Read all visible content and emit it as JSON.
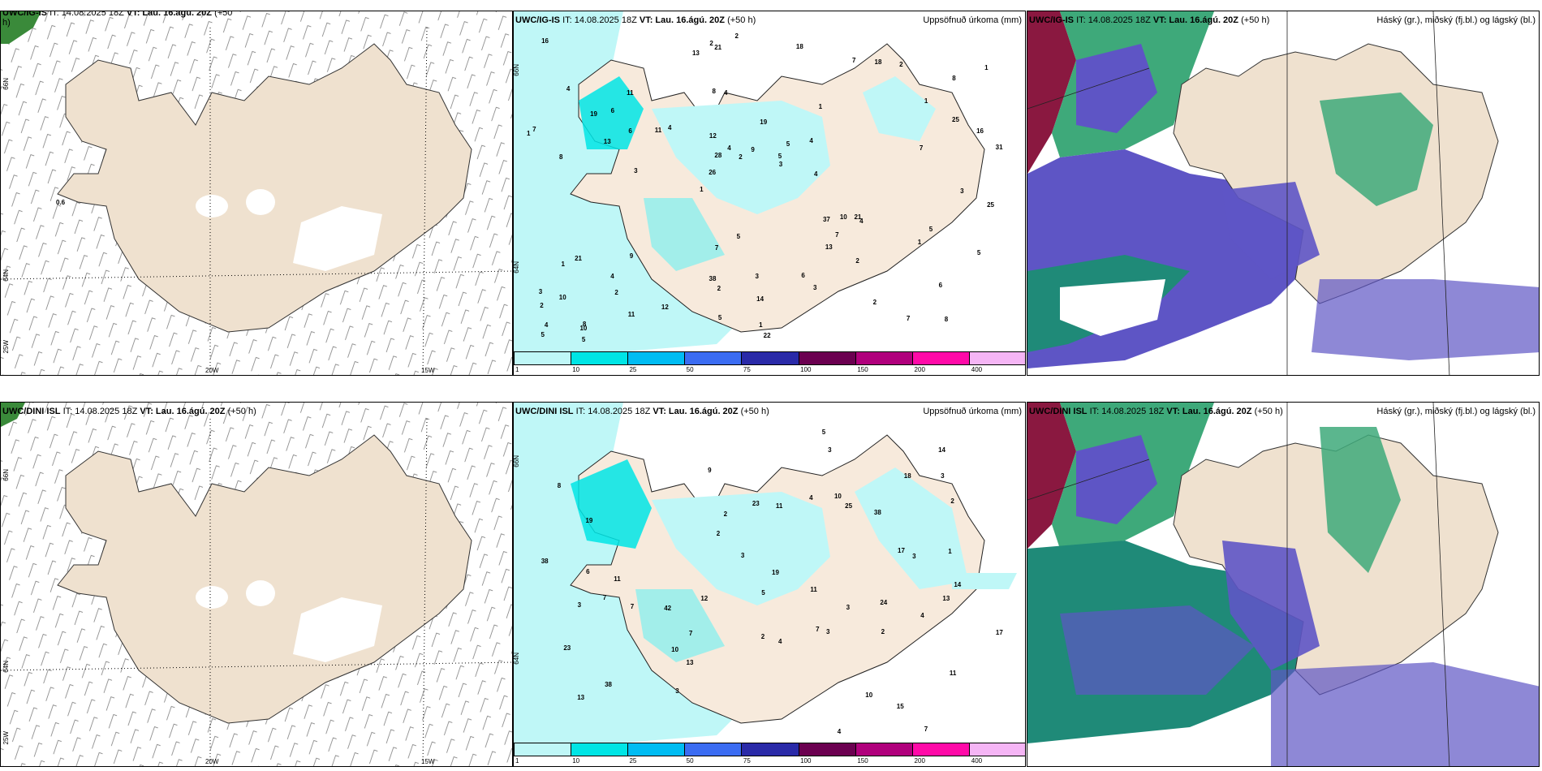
{
  "panels": {
    "tl": {
      "model": "UWC/IG-IS",
      "it": "IT: 14.08.2025 18Z",
      "vt_label": "VT:",
      "vt": "Lau. 16.ágú. 20Z",
      "lead": "(+50",
      "lead2": "h)",
      "extra": "0.6"
    },
    "tm": {
      "model": "UWC/IG-IS",
      "it": "IT: 14.08.2025 18Z",
      "vt_label": "VT:",
      "vt": "Lau. 16.ágú. 20Z",
      "lead": "(+50 h)",
      "right": "Uppsöfnuð úrkoma (mm)"
    },
    "tr": {
      "model": "UWC/IG-IS",
      "it": "IT: 14.08.2025 18Z",
      "vt_label": "VT:",
      "vt": "Lau. 16.ágú. 20Z",
      "lead": "(+50 h)",
      "right": "Háský (gr.), miðský (fj.bl.) og lágský (bl.)"
    },
    "bl": {
      "model": "UWC/DINI ISL",
      "it": "IT: 14.08.2025 18Z",
      "vt_label": "VT:",
      "vt": "Lau. 16.ágú. 20Z",
      "lead": "(+50 h)"
    },
    "bm": {
      "model": "UWC/DINI ISL",
      "it": "IT: 14.08.2025 18Z",
      "vt_label": "VT:",
      "vt": "Lau. 16.ágú. 20Z",
      "lead": "(+50 h)",
      "right": "Uppsöfnuð úrkoma (mm)"
    },
    "br": {
      "model": "UWC/DINI ISL",
      "it": "IT: 14.08.2025 18Z",
      "vt_label": "VT:",
      "vt": "Lau. 16.ágú. 20Z",
      "lead": "(+50 h)",
      "right": "Háský (gr.), miðský (fj.bl.) og lágský (bl.)"
    }
  },
  "axes": {
    "lat66": "66N",
    "lat64": "64N",
    "lon25": "25W",
    "lon20": "20W",
    "lon15": "15W",
    "lat65b": "65N"
  },
  "colorbar": {
    "labels": [
      "1",
      "10",
      "25",
      "50",
      "75",
      "100",
      "150",
      "200",
      "400"
    ],
    "colors": [
      "#bff7f7",
      "#00e5e5",
      "#00bcf2",
      "#3b6cf2",
      "#2a2aa8",
      "#6b0050",
      "#b0007c",
      "#ff0aa8",
      "#f5b5f5"
    ]
  },
  "precip_top": [
    "8",
    "8",
    "8",
    "1",
    "1",
    "8",
    "8",
    "19",
    "21",
    "4",
    "2",
    "2",
    "4",
    "5",
    "4",
    "4",
    "21",
    "31",
    "37",
    "25",
    "26",
    "38",
    "28",
    "11",
    "7",
    "9",
    "7",
    "6",
    "21",
    "22",
    "11",
    "13",
    "13",
    "11",
    "16",
    "5",
    "4",
    "2",
    "3",
    "1",
    "1",
    "1",
    "7",
    "3",
    "4",
    "5",
    "5",
    "3",
    "2",
    "2",
    "3",
    "7",
    "6",
    "18",
    "10",
    "18",
    "13",
    "4",
    "5",
    "7",
    "12",
    "10",
    "6",
    "3",
    "16",
    "19",
    "25",
    "12",
    "14",
    "9",
    "10",
    "4",
    "5",
    "5",
    "7",
    "5",
    "2",
    "1",
    "6",
    "2",
    "3",
    "4",
    "2",
    "2",
    "1",
    "1"
  ],
  "precip_bottom": [
    "7",
    "7",
    "7",
    "8",
    "11",
    "19",
    "38",
    "42",
    "38",
    "23",
    "25",
    "15",
    "13",
    "9",
    "11",
    "23",
    "24",
    "19",
    "38",
    "13",
    "14",
    "11",
    "17",
    "17",
    "14",
    "6",
    "7",
    "5",
    "3",
    "3",
    "3",
    "3",
    "10",
    "10",
    "2",
    "4",
    "13",
    "10",
    "18",
    "4",
    "7",
    "4",
    "3",
    "5",
    "12",
    "11",
    "2",
    "3",
    "4",
    "2",
    "3",
    "1",
    "2",
    "3",
    "2"
  ]
}
